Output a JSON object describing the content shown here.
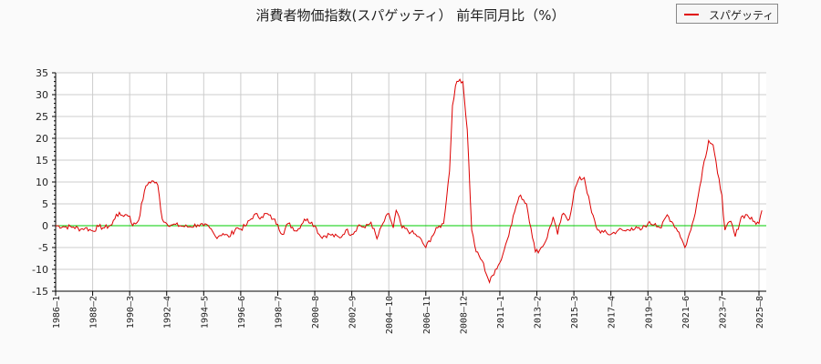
{
  "chart_data": {
    "type": "line",
    "title": "消費者物価指数(スパゲッティ） 前年同月比（%）",
    "xlabel": "",
    "ylabel": "",
    "ylim": [
      -15,
      35
    ],
    "yticks": [
      35,
      30,
      25,
      20,
      15,
      10,
      5,
      0,
      -5,
      -10,
      -15
    ],
    "xticks": [
      "1986-1",
      "1988-2",
      "1990-3",
      "1992-4",
      "1994-5",
      "1996-6",
      "1998-7",
      "2000-8",
      "2002-9",
      "2004-10",
      "2006-11",
      "2008-12",
      "2011-1",
      "2013-2",
      "2015-3",
      "2017-4",
      "2019-5",
      "2021-6",
      "2023-7",
      "2025-8"
    ],
    "grid": true,
    "legend_position": "top-right",
    "reference_line": {
      "y": 0,
      "color": "#00cc00"
    },
    "series": [
      {
        "name": "スパゲッティ",
        "color": "#dd0000",
        "points": [
          [
            "1986-1",
            0.0
          ],
          [
            "1986-6",
            -0.2
          ],
          [
            "1987-1",
            -0.3
          ],
          [
            "1987-6",
            -0.8
          ],
          [
            "1987-9",
            -0.5
          ],
          [
            "1988-2",
            -1.2
          ],
          [
            "1988-6",
            -0.2
          ],
          [
            "1988-10",
            -0.5
          ],
          [
            "1989-3",
            0.2
          ],
          [
            "1989-6",
            2.6
          ],
          [
            "1989-9",
            2.4
          ],
          [
            "1990-1",
            2.5
          ],
          [
            "1990-3",
            2.2
          ],
          [
            "1990-5",
            0.0
          ],
          [
            "1990-9",
            1.2
          ],
          [
            "1991-1",
            8.0
          ],
          [
            "1991-4",
            10.0
          ],
          [
            "1991-7",
            10.2
          ],
          [
            "1991-10",
            9.3
          ],
          [
            "1992-1",
            1.5
          ],
          [
            "1992-4",
            0.5
          ],
          [
            "1992-8",
            0.2
          ],
          [
            "1993-1",
            0.0
          ],
          [
            "1993-6",
            -0.3
          ],
          [
            "1994-1",
            0.2
          ],
          [
            "1994-5",
            0.0
          ],
          [
            "1994-9",
            -0.5
          ],
          [
            "1995-1",
            -2.5
          ],
          [
            "1995-6",
            -1.8
          ],
          [
            "1995-10",
            -2.6
          ],
          [
            "1996-3",
            -0.5
          ],
          [
            "1996-6",
            -0.8
          ],
          [
            "1996-10",
            0.2
          ],
          [
            "1997-3",
            2.5
          ],
          [
            "1997-8",
            2.0
          ],
          [
            "1997-11",
            2.8
          ],
          [
            "1998-4",
            1.5
          ],
          [
            "1998-7",
            0.3
          ],
          [
            "1998-10",
            -2.0
          ],
          [
            "1999-2",
            0.5
          ],
          [
            "1999-8",
            -1.2
          ],
          [
            "2000-1",
            1.5
          ],
          [
            "2000-6",
            0.8
          ],
          [
            "2000-8",
            0.0
          ],
          [
            "2000-12",
            -2.5
          ],
          [
            "2001-6",
            -2.0
          ],
          [
            "2002-1",
            -2.8
          ],
          [
            "2002-5",
            -1.0
          ],
          [
            "2002-9",
            -2.0
          ],
          [
            "2003-2",
            0.2
          ],
          [
            "2003-6",
            -0.5
          ],
          [
            "2003-10",
            0.8
          ],
          [
            "2004-2",
            -3.0
          ],
          [
            "2004-6",
            0.5
          ],
          [
            "2004-10",
            2.8
          ],
          [
            "2005-1",
            -0.5
          ],
          [
            "2005-3",
            3.5
          ],
          [
            "2005-7",
            -0.5
          ],
          [
            "2006-1",
            -1.5
          ],
          [
            "2006-6",
            -2.5
          ],
          [
            "2006-11",
            -5.0
          ],
          [
            "2007-3",
            -2.5
          ],
          [
            "2007-7",
            -0.5
          ],
          [
            "2007-11",
            0.5
          ],
          [
            "2008-3",
            12.5
          ],
          [
            "2008-5",
            27.5
          ],
          [
            "2008-7",
            32.0
          ],
          [
            "2008-10",
            33.5
          ],
          [
            "2008-12",
            33.0
          ],
          [
            "2009-3",
            22.0
          ],
          [
            "2009-6",
            -1.0
          ],
          [
            "2009-9",
            -6.0
          ],
          [
            "2010-1",
            -8.0
          ],
          [
            "2010-6",
            -13.0
          ],
          [
            "2010-10",
            -10.0
          ],
          [
            "2011-1",
            -8.5
          ],
          [
            "2011-4",
            -5.5
          ],
          [
            "2011-8",
            -0.5
          ],
          [
            "2011-12",
            4.5
          ],
          [
            "2012-3",
            7.0
          ],
          [
            "2012-7",
            5.0
          ],
          [
            "2012-10",
            -0.5
          ],
          [
            "2013-1",
            -6.0
          ],
          [
            "2013-4",
            -5.5
          ],
          [
            "2013-8",
            -3.5
          ],
          [
            "2014-1",
            2.0
          ],
          [
            "2014-4",
            -2.0
          ],
          [
            "2014-7",
            2.5
          ],
          [
            "2014-12",
            1.5
          ],
          [
            "2015-3",
            7.5
          ],
          [
            "2015-6",
            10.5
          ],
          [
            "2015-10",
            11.0
          ],
          [
            "2016-3",
            3.0
          ],
          [
            "2016-7",
            -1.0
          ],
          [
            "2016-11",
            -1.5
          ],
          [
            "2017-4",
            -2.0
          ],
          [
            "2017-9",
            -1.0
          ],
          [
            "2018-2",
            -1.2
          ],
          [
            "2018-6",
            -0.5
          ],
          [
            "2018-12",
            -1.0
          ],
          [
            "2019-5",
            0.5
          ],
          [
            "2019-10",
            0.5
          ],
          [
            "2020-2",
            -0.5
          ],
          [
            "2020-6",
            2.5
          ],
          [
            "2020-10",
            0.5
          ],
          [
            "2021-2",
            -1.5
          ],
          [
            "2021-6",
            -5.0
          ],
          [
            "2021-10",
            -1.0
          ],
          [
            "2022-2",
            5.0
          ],
          [
            "2022-6",
            13.0
          ],
          [
            "2022-10",
            19.5
          ],
          [
            "2023-1",
            18.5
          ],
          [
            "2023-4",
            12.0
          ],
          [
            "2023-7",
            7.0
          ],
          [
            "2023-9",
            -1.0
          ],
          [
            "2024-1",
            1.0
          ],
          [
            "2024-4",
            -2.5
          ],
          [
            "2024-8",
            2.0
          ],
          [
            "2024-12",
            2.5
          ],
          [
            "2025-4",
            1.0
          ],
          [
            "2025-8",
            0.5
          ],
          [
            "2025-10",
            3.5
          ]
        ]
      }
    ]
  },
  "legend": {
    "label": "スパゲッティ"
  }
}
